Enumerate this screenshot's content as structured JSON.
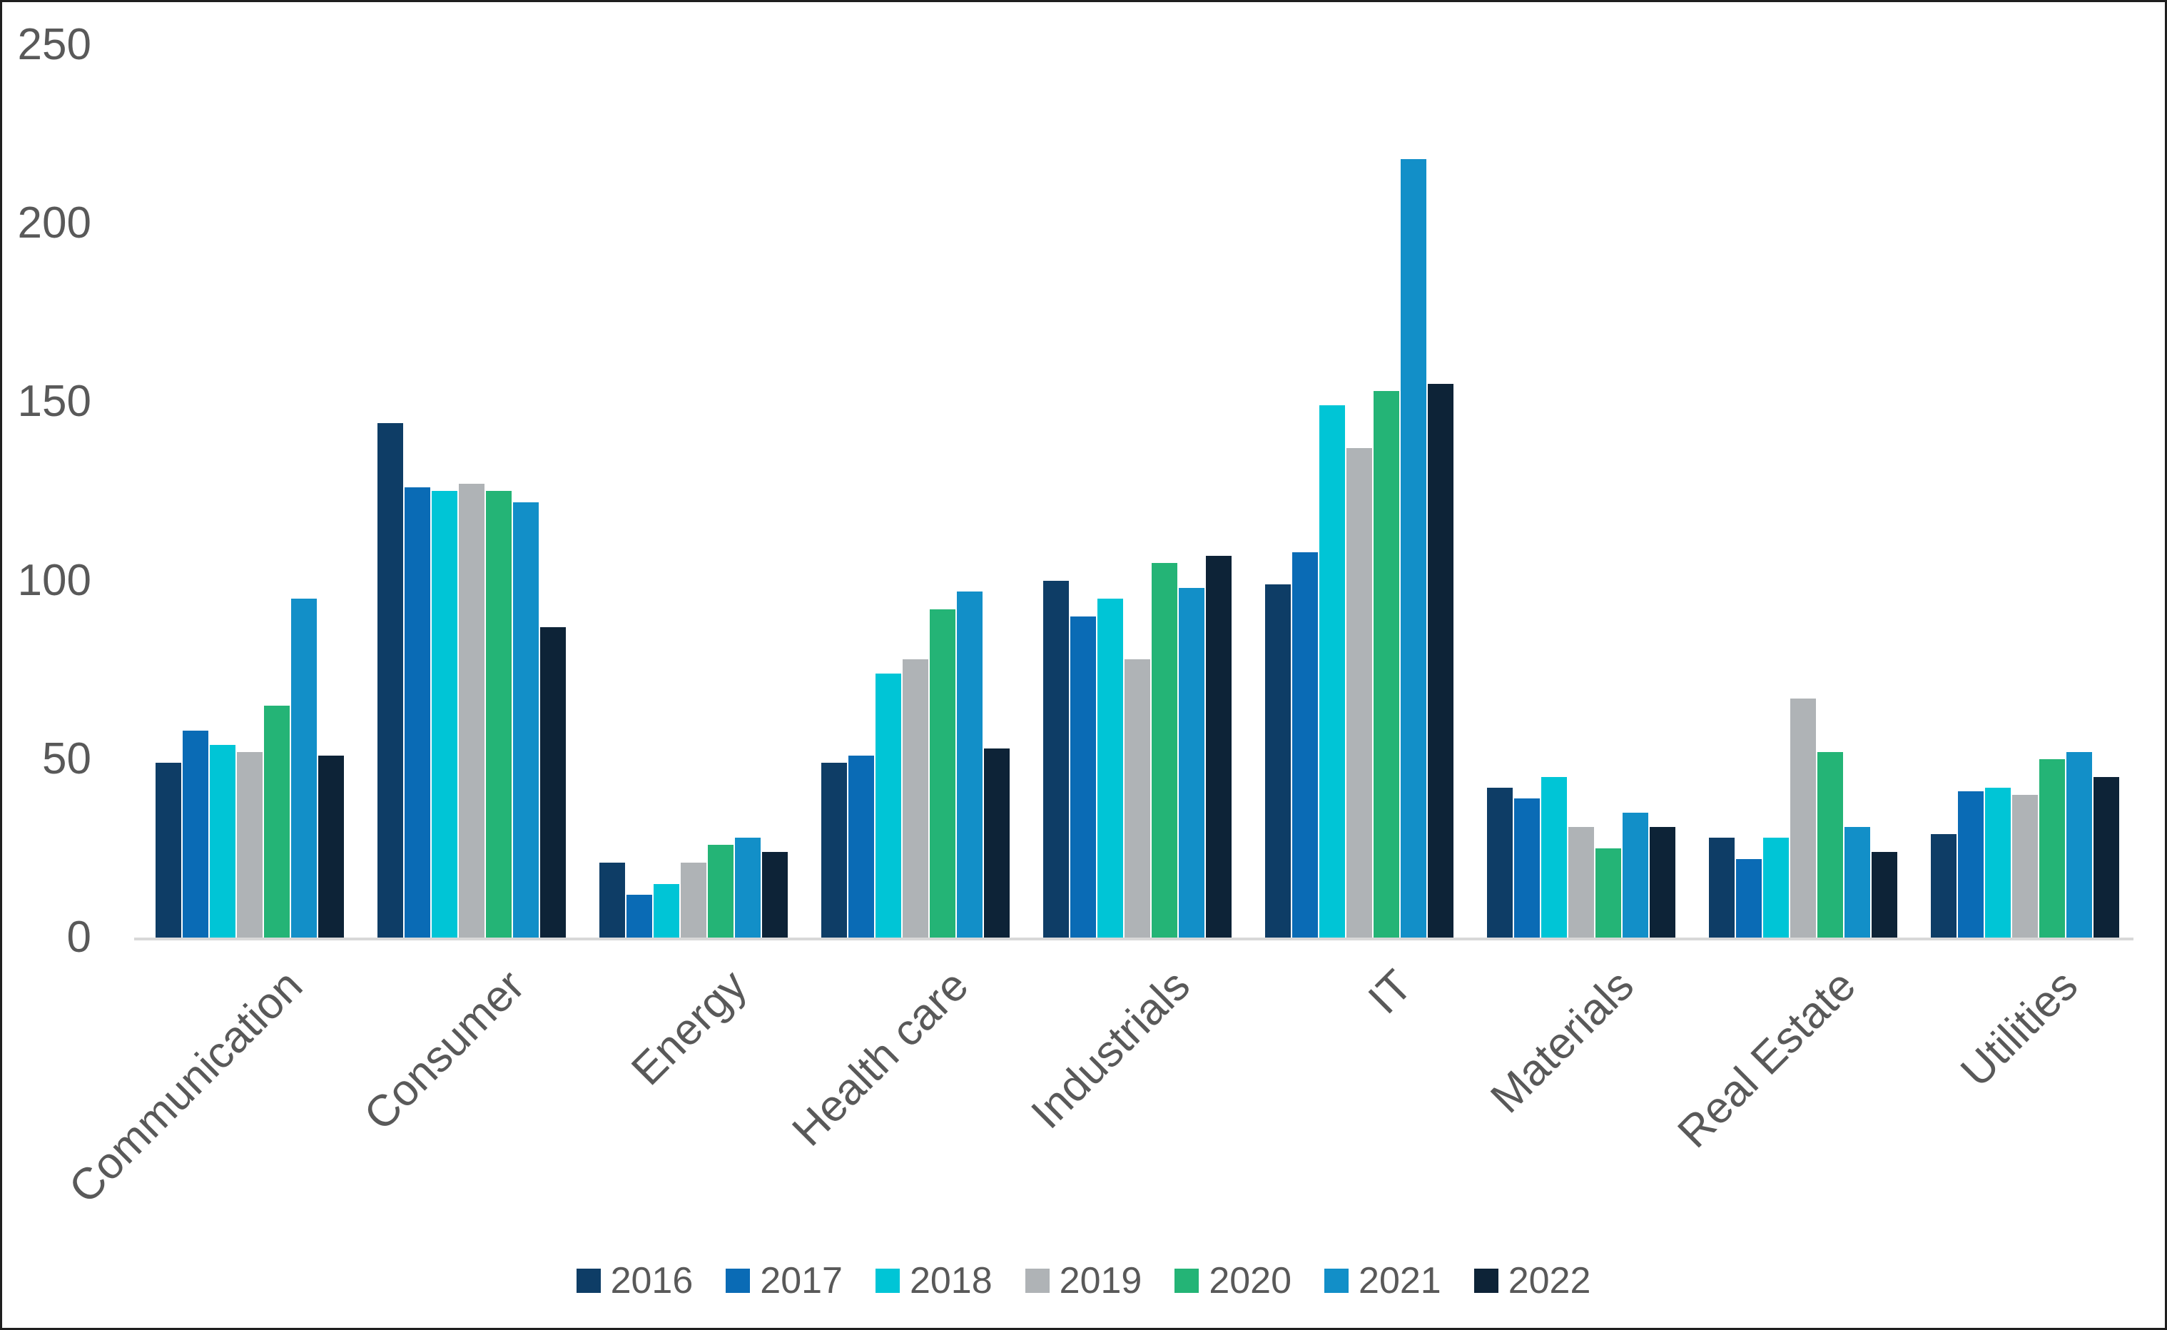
{
  "chart_data": {
    "type": "bar",
    "title": "",
    "xlabel": "",
    "ylabel": "",
    "ylim": [
      0,
      250
    ],
    "yticks": [
      0,
      50,
      100,
      150,
      200,
      250
    ],
    "grid": false,
    "legend_position": "bottom",
    "axis_color": "#d8d8d8",
    "text_color": "#595959",
    "categories": [
      "Communication",
      "Consumer",
      "Energy",
      "Health care",
      "Industrials",
      "IT",
      "Materials",
      "Real Estate",
      "Utilities"
    ],
    "series": [
      {
        "name": "2016",
        "color": "#0e3d66",
        "values": [
          49,
          144,
          21,
          49,
          100,
          99,
          42,
          28,
          29
        ]
      },
      {
        "name": "2017",
        "color": "#0a6bb5",
        "values": [
          58,
          126,
          12,
          51,
          90,
          108,
          39,
          22,
          41
        ]
      },
      {
        "name": "2018",
        "color": "#00c5d6",
        "values": [
          54,
          125,
          15,
          74,
          95,
          149,
          45,
          28,
          42
        ]
      },
      {
        "name": "2019",
        "color": "#afb3b6",
        "values": [
          52,
          127,
          21,
          78,
          78,
          137,
          31,
          67,
          40
        ]
      },
      {
        "name": "2020",
        "color": "#24b476",
        "values": [
          65,
          125,
          26,
          92,
          105,
          153,
          25,
          52,
          50
        ]
      },
      {
        "name": "2021",
        "color": "#128fc8",
        "values": [
          95,
          122,
          28,
          97,
          98,
          218,
          35,
          31,
          52
        ]
      },
      {
        "name": "2022",
        "color": "#0d2337",
        "values": [
          51,
          87,
          24,
          53,
          107,
          155,
          31,
          24,
          45
        ]
      }
    ]
  }
}
